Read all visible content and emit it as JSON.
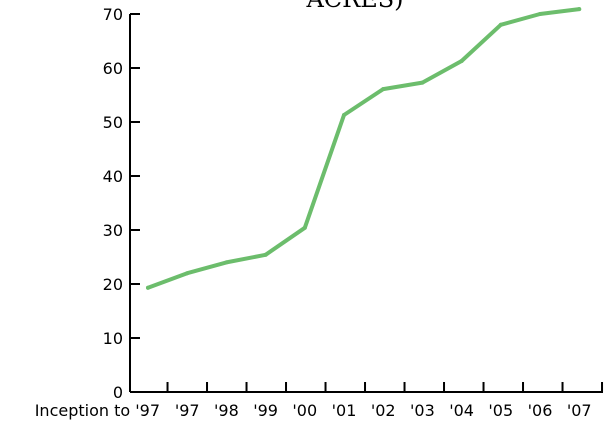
{
  "chart_data": {
    "type": "line",
    "title": "ACRES)",
    "title_color": "#5bb55b",
    "line_color": "#6cbd6c",
    "axis_color": "#000000",
    "categories": [
      "Inception to '97",
      "'97",
      "'98",
      "'99",
      "'00",
      "'01",
      "'02",
      "'03",
      "'04",
      "'05",
      "'06",
      "'07"
    ],
    "values": [
      19.3,
      22.0,
      24.0,
      25.4,
      30.4,
      51.3,
      56.1,
      57.3,
      61.3,
      68.0,
      70.0,
      70.9
    ],
    "yticks": [
      "0",
      "10",
      "20",
      "30",
      "40",
      "50",
      "60",
      "70"
    ],
    "ylim": [
      0,
      70
    ],
    "grid": false
  }
}
